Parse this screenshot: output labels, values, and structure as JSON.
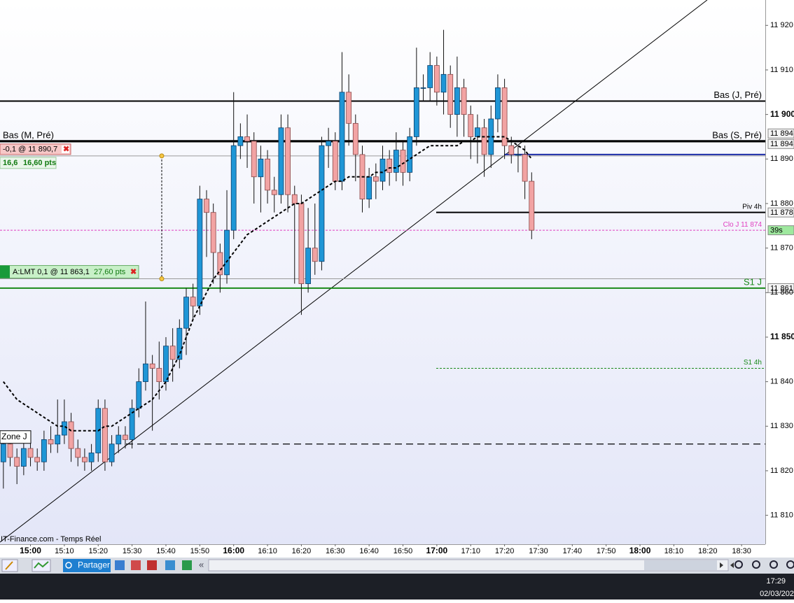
{
  "chart_data": {
    "type": "candlestick",
    "x": [
      "14:52",
      "14:54",
      "14:56",
      "14:58",
      "15:00",
      "15:02",
      "15:04",
      "15:06",
      "15:08",
      "15:10",
      "15:12",
      "15:14",
      "15:16",
      "15:18",
      "15:20",
      "15:22",
      "15:24",
      "15:26",
      "15:28",
      "15:30",
      "15:32",
      "15:34",
      "15:36",
      "15:38",
      "15:40",
      "15:42",
      "15:44",
      "15:46",
      "15:48",
      "15:50",
      "15:52",
      "15:54",
      "15:56",
      "15:58",
      "16:00",
      "16:02",
      "16:04",
      "16:06",
      "16:08",
      "16:10",
      "16:12",
      "16:14",
      "16:16",
      "16:18",
      "16:20",
      "16:22",
      "16:24",
      "16:26",
      "16:28",
      "16:30",
      "16:32",
      "16:34",
      "16:36",
      "16:38",
      "16:40",
      "16:42",
      "16:44",
      "16:46",
      "16:48",
      "16:50",
      "16:52",
      "16:54",
      "16:56",
      "16:58",
      "17:00",
      "17:02",
      "17:04",
      "17:06",
      "17:08",
      "17:10",
      "17:12",
      "17:14",
      "17:16",
      "17:18",
      "17:20",
      "17:22",
      "17:24",
      "17:26",
      "17:28"
    ],
    "open": [
      11822,
      11826,
      11823,
      11821,
      11825,
      11823,
      11822,
      11827,
      11826,
      11828,
      11831,
      11825,
      11823,
      11822,
      11824,
      11834,
      11822,
      11826,
      11828,
      11827,
      11834,
      11840,
      11844,
      11843,
      11840,
      11848,
      11845,
      11852,
      11859,
      11857,
      11881,
      11878,
      11869,
      11864,
      11874,
      11893,
      11895,
      11894,
      11886,
      11890,
      11883,
      11882,
      11897,
      11882,
      11880,
      11862,
      11870,
      11867,
      11893,
      11894,
      11885,
      11905,
      11898,
      11891,
      11881,
      11886,
      11885,
      11890,
      11887,
      11892,
      11887,
      11895,
      11906,
      11906,
      11911,
      11905,
      11909,
      11900,
      11906,
      11900,
      11895,
      11897,
      11891,
      11899,
      11906,
      11893,
      11891,
      11891,
      11885
    ],
    "high": [
      11828,
      11828,
      11825,
      11827,
      11829,
      11825,
      11829,
      11830,
      11836,
      11836,
      11833,
      11827,
      11825,
      11826,
      11836,
      11836,
      11828,
      11830,
      11830,
      11836,
      11843,
      11858,
      11846,
      11849,
      11850,
      11852,
      11854,
      11861,
      11862,
      11884,
      11883,
      11880,
      11871,
      11883,
      11905,
      11898,
      11900,
      11896,
      11893,
      11892,
      11886,
      11900,
      11900,
      11884,
      11882,
      11879,
      11880,
      11895,
      11897,
      11896,
      11914,
      11909,
      11900,
      11893,
      11888,
      11889,
      11893,
      11892,
      11896,
      11894,
      11897,
      11915,
      11909,
      11914,
      11913,
      11919,
      11911,
      11913,
      11908,
      11902,
      11900,
      11899,
      11902,
      11909,
      11908,
      11895,
      11893,
      11893,
      11887
    ],
    "low": [
      11816,
      11821,
      11817,
      11819,
      11821,
      11820,
      11820,
      11824,
      11824,
      11826,
      11822,
      11821,
      11820,
      11820,
      11822,
      11820,
      11821,
      11824,
      11825,
      11825,
      11832,
      11838,
      11829,
      11836,
      11838,
      11840,
      11843,
      11846,
      11854,
      11855,
      11868,
      11862,
      11860,
      11862,
      11872,
      11890,
      11888,
      11880,
      11878,
      11880,
      11878,
      11880,
      11878,
      11862,
      11855,
      11860,
      11864,
      11865,
      11888,
      11883,
      11883,
      11893,
      11885,
      11878,
      11879,
      11881,
      11883,
      11884,
      11885,
      11884,
      11885,
      11893,
      11903,
      11903,
      11902,
      11900,
      11897,
      11895,
      11895,
      11890,
      11889,
      11886,
      11888,
      11896,
      11890,
      11889,
      11887,
      11881,
      11872
    ],
    "close": [
      11826,
      11823,
      11821,
      11825,
      11823,
      11822,
      11827,
      11826,
      11828,
      11831,
      11825,
      11823,
      11822,
      11824,
      11834,
      11822,
      11826,
      11828,
      11827,
      11834,
      11840,
      11844,
      11843,
      11840,
      11848,
      11845,
      11852,
      11859,
      11857,
      11881,
      11878,
      11869,
      11864,
      11874,
      11893,
      11895,
      11894,
      11886,
      11890,
      11883,
      11882,
      11897,
      11882,
      11880,
      11862,
      11870,
      11867,
      11893,
      11894,
      11885,
      11905,
      11898,
      11891,
      11881,
      11886,
      11885,
      11890,
      11887,
      11892,
      11887,
      11895,
      11906,
      11906,
      11911,
      11905,
      11909,
      11900,
      11906,
      11900,
      11895,
      11897,
      11891,
      11899,
      11906,
      11893,
      11891,
      11891,
      11885,
      11874
    ],
    "up_color": "#1f96d6",
    "down_color": "#f2a3a3",
    "moving_average": {
      "color": "#000000",
      "values": [
        11840,
        11838,
        11836,
        11835,
        11834,
        11833,
        11832,
        11831,
        11830,
        11830,
        11829,
        11829,
        11829,
        11829,
        11829,
        11830,
        11830,
        11831,
        11832,
        11833,
        11834,
        11835,
        11836,
        11838,
        11840,
        11843,
        11846,
        11850,
        11854,
        11857,
        11860,
        11863,
        11865,
        11867,
        11869,
        11871,
        11873,
        11874,
        11875,
        11876,
        11877,
        11878,
        11879,
        11880,
        11880,
        11881,
        11882,
        11883,
        11884,
        11885,
        11885,
        11886,
        11886,
        11886,
        11886,
        11887,
        11887,
        11888,
        11888,
        11889,
        11890,
        11891,
        11892,
        11893,
        11893,
        11893,
        11893,
        11893,
        11894,
        11894,
        11895,
        11895,
        11895,
        11895,
        11895,
        11894,
        11893,
        11892,
        11890
      ]
    },
    "xlim": [
      "14:51",
      "18:37"
    ],
    "xticks": [
      "15:00",
      "15:10",
      "15:20",
      "15:30",
      "15:40",
      "15:50",
      "16:00",
      "16:10",
      "16:20",
      "16:30",
      "16:40",
      "16:50",
      "17:00",
      "17:10",
      "17:20",
      "17:30",
      "17:40",
      "17:50",
      "18:00",
      "18:10",
      "18:20",
      "18:30"
    ],
    "ylim": [
      11803.5,
      11925.7
    ],
    "yticks": [
      {
        "value": 11810,
        "label": "11 810"
      },
      {
        "value": 11820,
        "label": "11 820"
      },
      {
        "value": 11830,
        "label": "11 830"
      },
      {
        "value": 11840,
        "label": "11 840"
      },
      {
        "value": 11850,
        "label": "11 850"
      },
      {
        "value": 11860,
        "label": "11 860"
      },
      {
        "value": 11870,
        "label": "11 870"
      },
      {
        "value": 11880,
        "label": "11 880"
      },
      {
        "value": 11890,
        "label": "11 890"
      },
      {
        "value": 11900,
        "label": "11 900"
      },
      {
        "value": 11910,
        "label": "11 910"
      },
      {
        "value": 11920,
        "label": "11 920"
      }
    ],
    "levels": [
      {
        "label": "Bas (J, Pré)",
        "value": 11903,
        "color": "#000000",
        "side": "right"
      },
      {
        "label": "Bas (M, Pré)",
        "value": 11894,
        "color": "#000000",
        "side": "left",
        "tag": "11 894"
      },
      {
        "label": "Bas (S, Pré)",
        "value": 11894,
        "color": "#000000",
        "side": "right",
        "tag": "11 894"
      },
      {
        "value": 11891,
        "color": "#1c2ca8"
      },
      {
        "label": "Piv 4h",
        "value": 11878,
        "color": "#000000",
        "side": "right",
        "tag": "11 878"
      },
      {
        "label": "Clo J 11 874",
        "value": 11874,
        "color": "#e03cc0",
        "side": "right",
        "tag": "39s",
        "tag_color": "#9ee89e",
        "dashed": true
      },
      {
        "label": "S1 J",
        "value": 11861,
        "color": "#1a8a1a",
        "side": "right",
        "tag": "11 861"
      },
      {
        "label": "S1 4h",
        "value": 11843,
        "color": "#1a8a1a",
        "side": "right",
        "dashed": true
      },
      {
        "label": "Zone J",
        "value": 11826,
        "color": "#000000",
        "side": "box",
        "dashed": true
      }
    ],
    "orders": [
      {
        "price": 11890.7,
        "text": "-0,1 @ 11 890,7",
        "gain": "16,6",
        "gain_pts": "16,60 pts"
      },
      {
        "price": 11863.1,
        "text": "A:LMT  0,1 @ 11 863,1",
        "gain_pts": "27,60 pts"
      }
    ]
  },
  "watermark": "IT-Finance.com - Temps Réel",
  "toolbar": {
    "share": "Partager"
  },
  "taskbar": {
    "time": "17:29",
    "date": "02/03/202"
  }
}
